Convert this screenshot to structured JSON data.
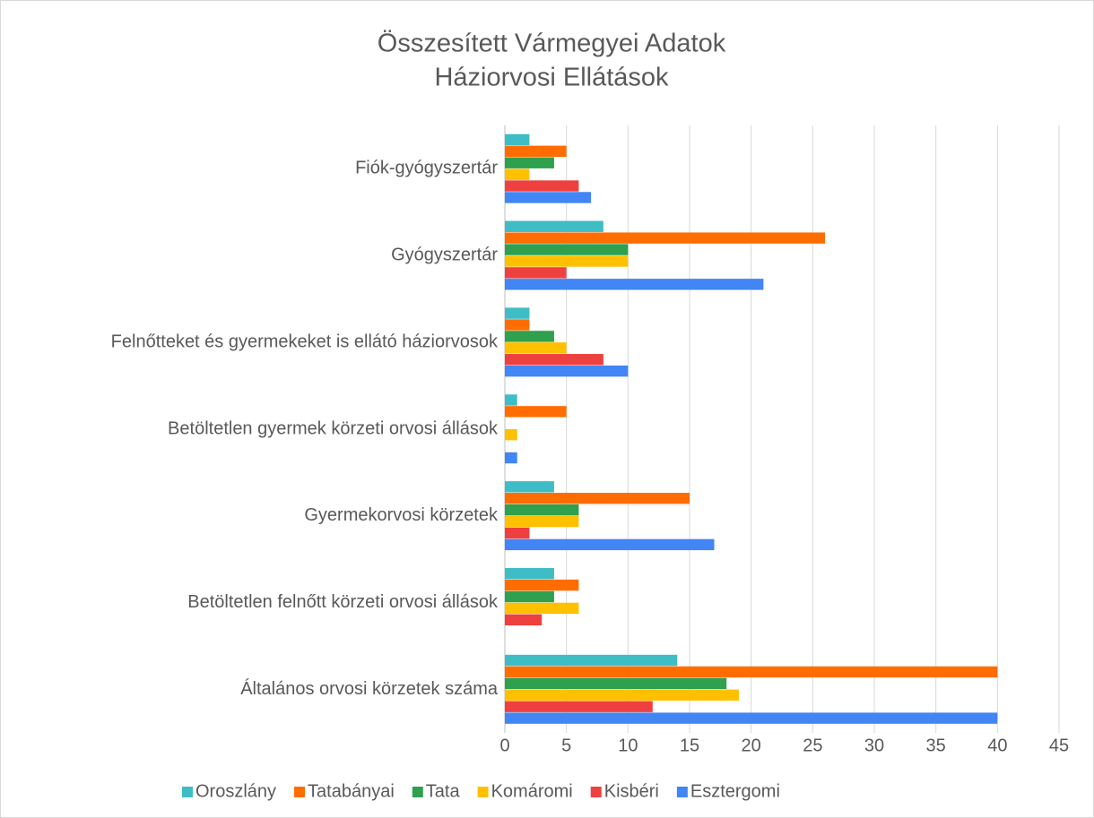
{
  "chart_data": {
    "type": "hbar",
    "title": [
      "Összesített Vármegyei Adatok",
      "Háziorvosi Ellátások"
    ],
    "categories": [
      "Fiók-gyógyszertár",
      "Gyógyszertár",
      "Felnőtteket és gyermekeket is ellátó háziorvosok",
      "Betöltetlen gyermek körzeti orvosi állások",
      "Gyermekorvosi körzetek",
      "Betöltetlen felnőtt körzeti orvosi állások",
      "Általános orvosi körzetek száma"
    ],
    "series": [
      {
        "name": "Oroszlány",
        "color": "#3fbdc6",
        "values": [
          2,
          8,
          2,
          1,
          4,
          4,
          14
        ]
      },
      {
        "name": "Tatabányai",
        "color": "#ff6d00",
        "values": [
          5,
          26,
          2,
          5,
          15,
          6,
          40
        ]
      },
      {
        "name": "Tata",
        "color": "#2ea04e",
        "values": [
          4,
          10,
          4,
          0,
          6,
          4,
          18
        ]
      },
      {
        "name": "Komáromi",
        "color": "#ffc000",
        "values": [
          2,
          10,
          5,
          1,
          6,
          6,
          19
        ]
      },
      {
        "name": "Kisbéri",
        "color": "#ef4040",
        "values": [
          6,
          5,
          8,
          0,
          2,
          3,
          12
        ]
      },
      {
        "name": "Esztergomi",
        "color": "#4285f4",
        "values": [
          7,
          21,
          10,
          1,
          17,
          0,
          40
        ]
      }
    ],
    "xlim": [
      0,
      45
    ],
    "xticks": [
      0,
      5,
      10,
      15,
      20,
      25,
      30,
      35,
      40,
      45
    ],
    "grid": true,
    "legend": "bottom"
  }
}
